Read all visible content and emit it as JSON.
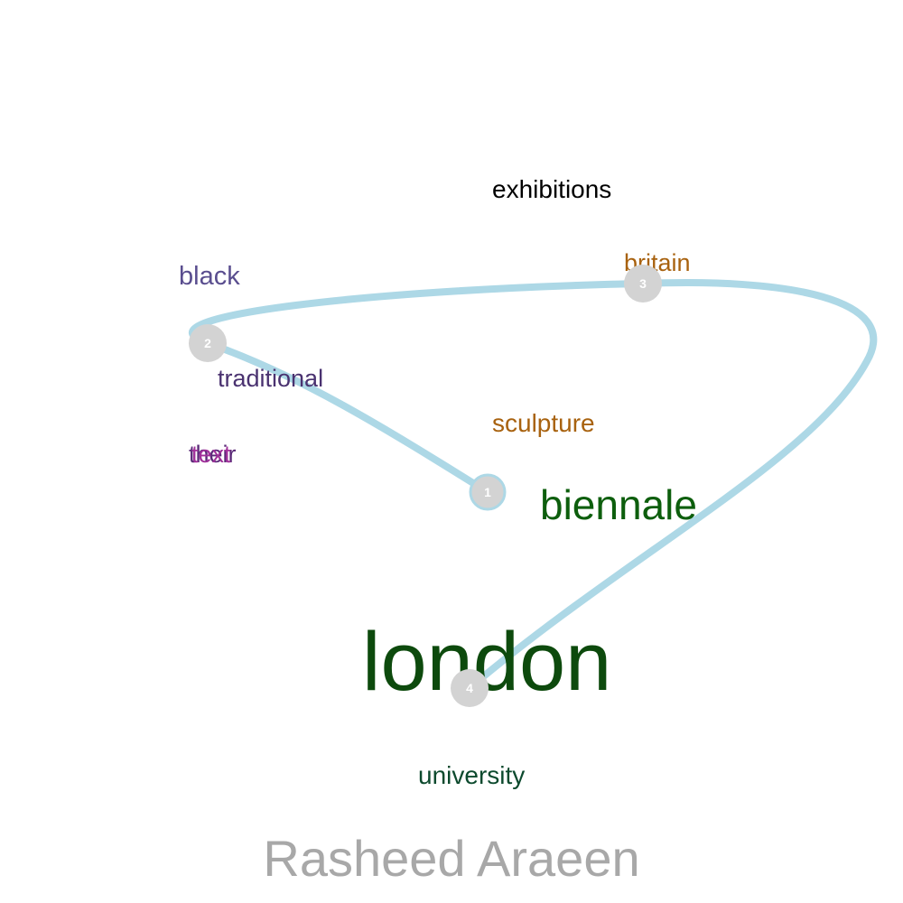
{
  "title": "Rasheed Araeen",
  "path_color": "#add8e6",
  "node_color": "#d3d3d3",
  "words": [
    {
      "id": "exhibitions",
      "text": "exhibitions",
      "color": "#000000"
    },
    {
      "id": "britain",
      "text": "britain",
      "color": "#a8620f"
    },
    {
      "id": "black",
      "text": "black",
      "color": "#5a4e8f"
    },
    {
      "id": "traditional",
      "text": "traditional",
      "color": "#4a3270"
    },
    {
      "id": "sculpture",
      "text": "sculpture",
      "color": "#a8620f"
    },
    {
      "id": "their",
      "text": "their",
      "color": "#5a2a78"
    },
    {
      "id": "text",
      "text": "text",
      "color": "#a0309a"
    },
    {
      "id": "biennale",
      "text": "biennale",
      "color": "#0d5e0d"
    },
    {
      "id": "london",
      "text": "london",
      "color": "#0d4a0d"
    },
    {
      "id": "university",
      "text": "university",
      "color": "#0d4a2e"
    }
  ],
  "steps": [
    {
      "label": "1"
    },
    {
      "label": "2"
    },
    {
      "label": "3"
    },
    {
      "label": "4"
    }
  ]
}
